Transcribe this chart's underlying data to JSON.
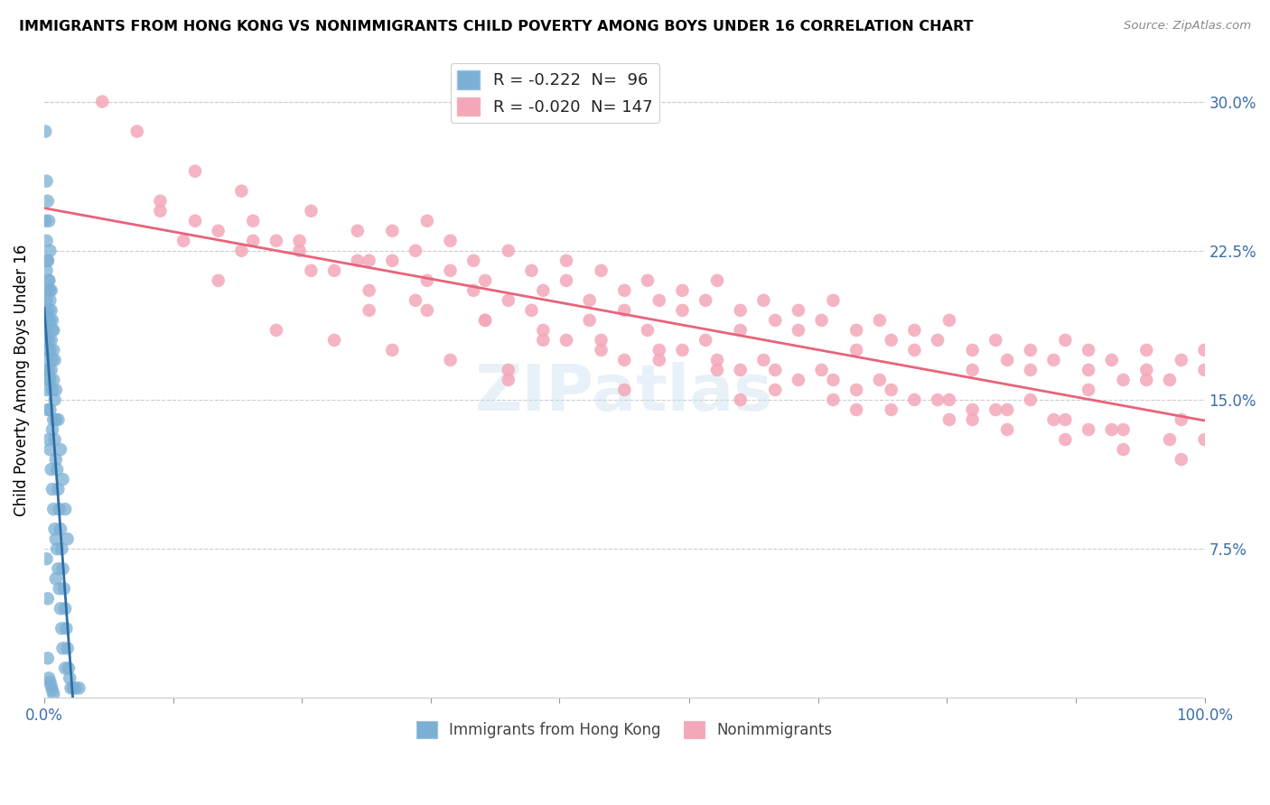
{
  "title": "IMMIGRANTS FROM HONG KONG VS NONIMMIGRANTS CHILD POVERTY AMONG BOYS UNDER 16 CORRELATION CHART",
  "source": "Source: ZipAtlas.com",
  "ylabel": "Child Poverty Among Boys Under 16",
  "xlim": [
    0.0,
    1.0
  ],
  "ylim": [
    0.0,
    0.32
  ],
  "yticks": [
    0.0,
    0.075,
    0.15,
    0.225,
    0.3
  ],
  "right_ytick_labels": [
    "",
    "7.5%",
    "15.0%",
    "22.5%",
    "30.0%"
  ],
  "xticks": [
    0.0,
    0.111,
    0.222,
    0.333,
    0.444,
    0.556,
    0.667,
    0.778,
    0.889,
    1.0
  ],
  "xtick_labels": [
    "0.0%",
    "",
    "",
    "",
    "",
    "",
    "",
    "",
    "",
    "100.0%"
  ],
  "blue_R": -0.222,
  "blue_N": 96,
  "pink_R": -0.02,
  "pink_N": 147,
  "blue_color": "#7bafd4",
  "pink_color": "#f4a7b9",
  "blue_line_color": "#2e6da4",
  "pink_line_color": "#e8637a",
  "dashed_line_color": "#aac8e0",
  "grid_color": "#cccccc",
  "legend_label_blue": "Immigrants from Hong Kong",
  "legend_label_pink": "Nonimmigrants",
  "blue_scatter_x": [
    0.001,
    0.001,
    0.001,
    0.002,
    0.002,
    0.002,
    0.002,
    0.002,
    0.003,
    0.003,
    0.003,
    0.003,
    0.003,
    0.003,
    0.004,
    0.004,
    0.004,
    0.004,
    0.004,
    0.005,
    0.005,
    0.005,
    0.005,
    0.005,
    0.005,
    0.006,
    0.006,
    0.006,
    0.006,
    0.007,
    0.007,
    0.007,
    0.007,
    0.007,
    0.008,
    0.008,
    0.008,
    0.008,
    0.009,
    0.009,
    0.009,
    0.01,
    0.01,
    0.01,
    0.01,
    0.011,
    0.011,
    0.012,
    0.012,
    0.013,
    0.013,
    0.014,
    0.014,
    0.015,
    0.015,
    0.016,
    0.016,
    0.017,
    0.018,
    0.018,
    0.019,
    0.02,
    0.021,
    0.022,
    0.023,
    0.025,
    0.027,
    0.03,
    0.001,
    0.001,
    0.002,
    0.002,
    0.003,
    0.003,
    0.004,
    0.004,
    0.005,
    0.005,
    0.006,
    0.007,
    0.008,
    0.009,
    0.01,
    0.012,
    0.014,
    0.016,
    0.018,
    0.02,
    0.003,
    0.004,
    0.005,
    0.006,
    0.007,
    0.008,
    0.002,
    0.003
  ],
  "blue_scatter_y": [
    0.195,
    0.18,
    0.165,
    0.215,
    0.2,
    0.185,
    0.17,
    0.155,
    0.22,
    0.205,
    0.19,
    0.175,
    0.16,
    0.145,
    0.21,
    0.195,
    0.18,
    0.165,
    0.13,
    0.205,
    0.19,
    0.175,
    0.16,
    0.145,
    0.125,
    0.195,
    0.18,
    0.165,
    0.115,
    0.185,
    0.17,
    0.155,
    0.135,
    0.105,
    0.175,
    0.16,
    0.14,
    0.095,
    0.15,
    0.13,
    0.085,
    0.14,
    0.12,
    0.08,
    0.06,
    0.115,
    0.075,
    0.105,
    0.065,
    0.095,
    0.055,
    0.085,
    0.045,
    0.075,
    0.035,
    0.065,
    0.025,
    0.055,
    0.045,
    0.015,
    0.035,
    0.025,
    0.015,
    0.01,
    0.005,
    0.005,
    0.005,
    0.005,
    0.285,
    0.24,
    0.26,
    0.23,
    0.25,
    0.22,
    0.24,
    0.21,
    0.225,
    0.2,
    0.205,
    0.19,
    0.185,
    0.17,
    0.155,
    0.14,
    0.125,
    0.11,
    0.095,
    0.08,
    0.02,
    0.01,
    0.008,
    0.006,
    0.004,
    0.002,
    0.07,
    0.05
  ],
  "pink_scatter_x": [
    0.05,
    0.08,
    0.1,
    0.12,
    0.13,
    0.15,
    0.17,
    0.18,
    0.2,
    0.22,
    0.23,
    0.25,
    0.27,
    0.28,
    0.3,
    0.3,
    0.32,
    0.33,
    0.35,
    0.35,
    0.37,
    0.38,
    0.4,
    0.4,
    0.42,
    0.43,
    0.45,
    0.45,
    0.47,
    0.48,
    0.5,
    0.5,
    0.52,
    0.53,
    0.55,
    0.55,
    0.57,
    0.58,
    0.6,
    0.6,
    0.62,
    0.63,
    0.65,
    0.65,
    0.67,
    0.68,
    0.7,
    0.7,
    0.72,
    0.73,
    0.75,
    0.75,
    0.77,
    0.78,
    0.8,
    0.8,
    0.82,
    0.83,
    0.85,
    0.85,
    0.87,
    0.88,
    0.9,
    0.9,
    0.92,
    0.93,
    0.95,
    0.95,
    0.97,
    0.98,
    1.0,
    1.0,
    0.2,
    0.25,
    0.3,
    0.35,
    0.4,
    0.45,
    0.5,
    0.55,
    0.6,
    0.65,
    0.7,
    0.75,
    0.8,
    0.85,
    0.9,
    0.95,
    0.1,
    0.15,
    0.28,
    0.32,
    0.38,
    0.43,
    0.48,
    0.53,
    0.58,
    0.63,
    0.68,
    0.73,
    0.78,
    0.83,
    0.88,
    0.93,
    0.98,
    0.22,
    0.27,
    0.33,
    0.37,
    0.42,
    0.47,
    0.52,
    0.57,
    0.62,
    0.67,
    0.72,
    0.77,
    0.82,
    0.87,
    0.92,
    0.97,
    0.17,
    0.23,
    0.28,
    0.33,
    0.38,
    0.43,
    0.48,
    0.53,
    0.58,
    0.63,
    0.68,
    0.73,
    0.78,
    0.83,
    0.88,
    0.93,
    0.98,
    0.13,
    0.18,
    0.4,
    0.5,
    0.6,
    0.7,
    0.8,
    0.9,
    1.0
  ],
  "pink_scatter_y": [
    0.3,
    0.285,
    0.25,
    0.23,
    0.265,
    0.21,
    0.255,
    0.24,
    0.23,
    0.225,
    0.245,
    0.215,
    0.235,
    0.22,
    0.235,
    0.22,
    0.225,
    0.24,
    0.215,
    0.23,
    0.22,
    0.21,
    0.225,
    0.2,
    0.215,
    0.205,
    0.21,
    0.22,
    0.2,
    0.215,
    0.205,
    0.195,
    0.21,
    0.2,
    0.205,
    0.195,
    0.2,
    0.21,
    0.195,
    0.185,
    0.2,
    0.19,
    0.195,
    0.185,
    0.19,
    0.2,
    0.185,
    0.175,
    0.19,
    0.18,
    0.185,
    0.175,
    0.18,
    0.19,
    0.175,
    0.165,
    0.18,
    0.17,
    0.175,
    0.165,
    0.17,
    0.18,
    0.165,
    0.175,
    0.17,
    0.16,
    0.165,
    0.175,
    0.16,
    0.17,
    0.165,
    0.175,
    0.185,
    0.18,
    0.175,
    0.17,
    0.165,
    0.18,
    0.17,
    0.175,
    0.165,
    0.16,
    0.155,
    0.15,
    0.145,
    0.15,
    0.155,
    0.16,
    0.245,
    0.235,
    0.195,
    0.2,
    0.19,
    0.185,
    0.18,
    0.175,
    0.17,
    0.165,
    0.16,
    0.155,
    0.15,
    0.145,
    0.14,
    0.135,
    0.14,
    0.23,
    0.22,
    0.21,
    0.205,
    0.195,
    0.19,
    0.185,
    0.18,
    0.17,
    0.165,
    0.16,
    0.15,
    0.145,
    0.14,
    0.135,
    0.13,
    0.225,
    0.215,
    0.205,
    0.195,
    0.19,
    0.18,
    0.175,
    0.17,
    0.165,
    0.155,
    0.15,
    0.145,
    0.14,
    0.135,
    0.13,
    0.125,
    0.12,
    0.24,
    0.23,
    0.16,
    0.155,
    0.15,
    0.145,
    0.14,
    0.135,
    0.13
  ]
}
